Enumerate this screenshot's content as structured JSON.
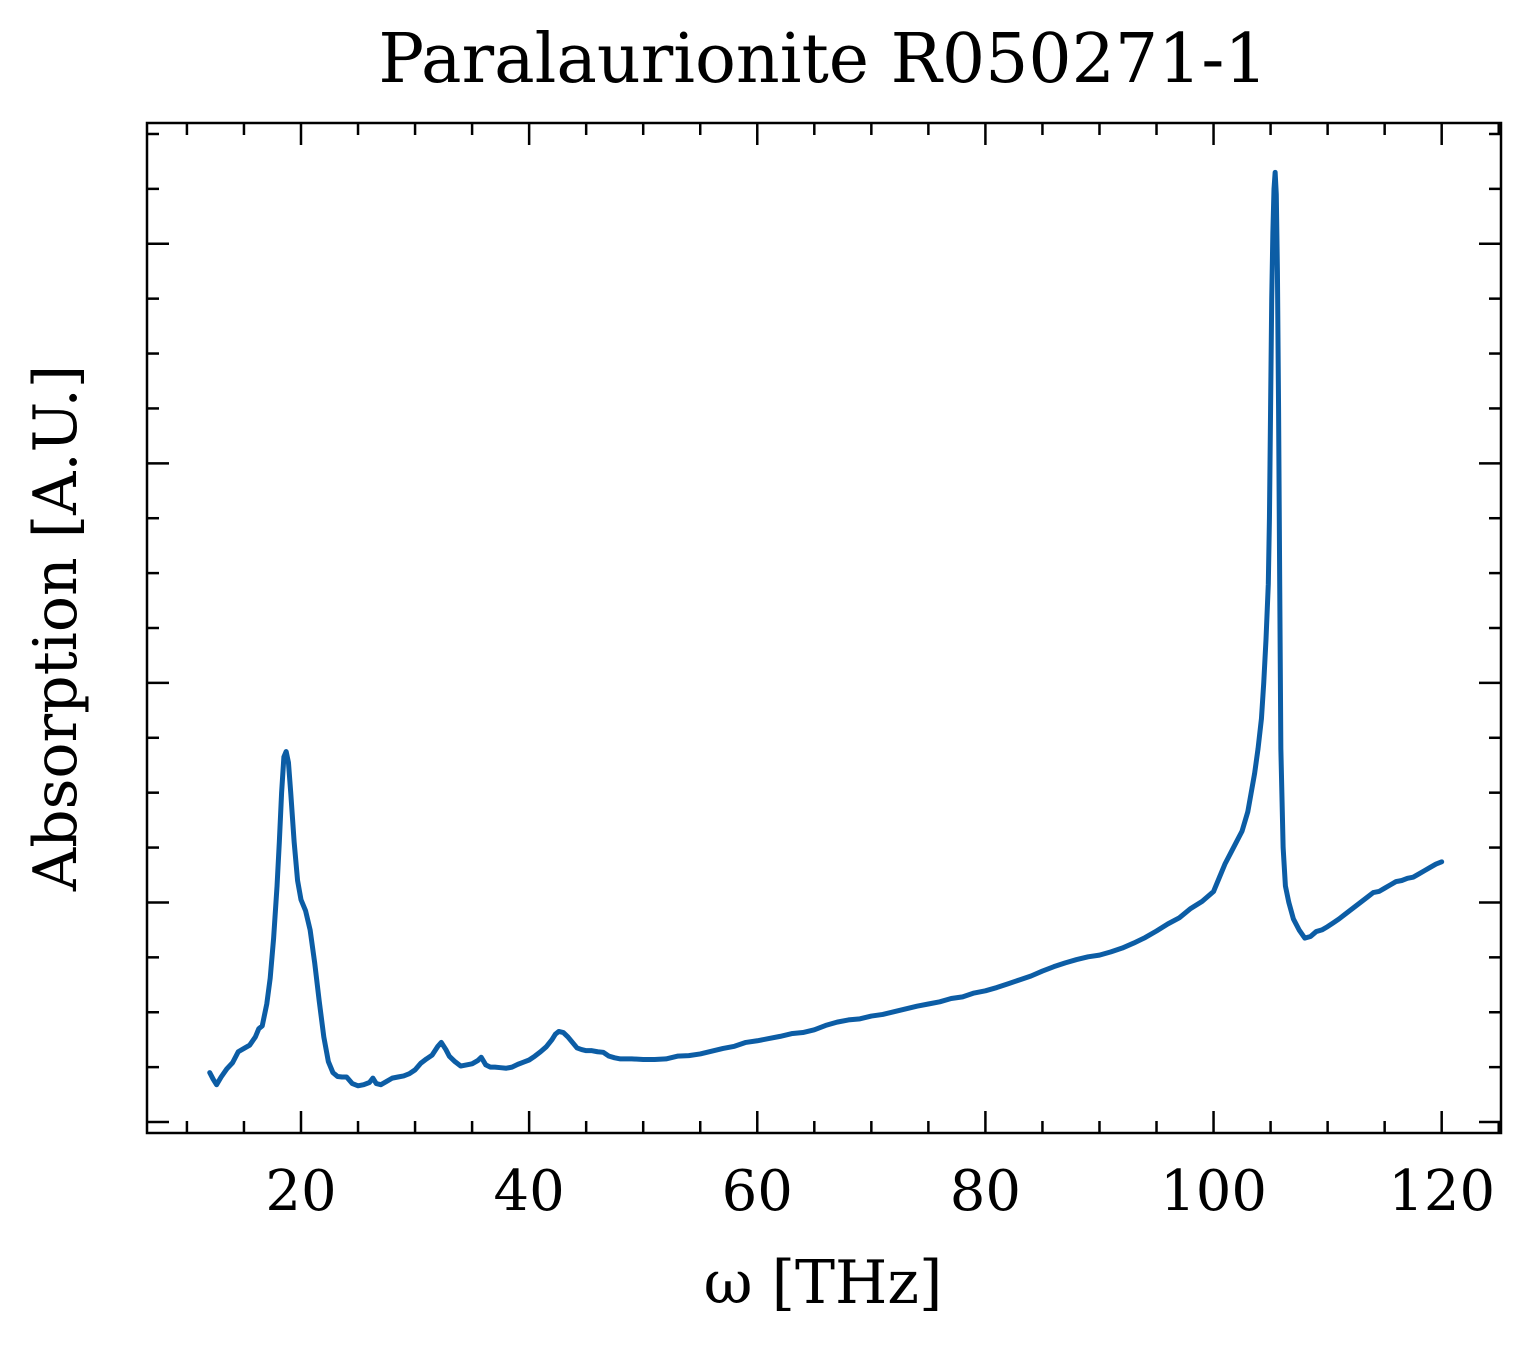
{
  "chart_data": {
    "type": "line",
    "title": "Paralaurionite R050271-1",
    "xlabel": "ω [THz]",
    "ylabel": "Absorption [A.U.]",
    "xlim": [
      6.5,
      125.2
    ],
    "ylim": [
      -0.02,
      1.82
    ],
    "x_ticks": [
      20,
      40,
      60,
      80,
      100,
      120
    ],
    "x_tick_labels": [
      "20",
      "40",
      "60",
      "80",
      "100",
      "120"
    ],
    "y_major_ticks": [
      0.0,
      0.4,
      0.8,
      1.2,
      1.6
    ],
    "y_tick_labels_visible": false,
    "grid": false,
    "line_color": "#0C5DA5",
    "series": [
      {
        "x": [
          12.0,
          12.3,
          12.6,
          13.0,
          13.5,
          14.0,
          14.5,
          15.0,
          15.5,
          16.0,
          16.3,
          16.6,
          17.0,
          17.3,
          17.6,
          17.9,
          18.1,
          18.3,
          18.5,
          18.7,
          18.9,
          19.1,
          19.4,
          19.7,
          20.0,
          20.4,
          20.8,
          21.2,
          21.6,
          22.0,
          22.4,
          22.8,
          23.2,
          23.6,
          24.0,
          24.5,
          25.0,
          25.5,
          26.0,
          26.3,
          26.6,
          27.0,
          27.5,
          28.0,
          28.5,
          29.0,
          29.5,
          30.0,
          30.5,
          31.0,
          31.5,
          32.0,
          32.3,
          32.7,
          33.0,
          33.5,
          34.0,
          34.5,
          35.0,
          35.5,
          35.8,
          36.2,
          36.6,
          37.0,
          37.5,
          38.0,
          38.5,
          39.0,
          39.5,
          40.0,
          40.5,
          41.0,
          41.5,
          42.0,
          42.3,
          42.6,
          43.0,
          43.4,
          43.8,
          44.2,
          44.6,
          45.0,
          45.5,
          46.0,
          46.5,
          47.0,
          47.5,
          48.0,
          49.0,
          50.0,
          51.0,
          52.0,
          53.0,
          54.0,
          55.0,
          56.0,
          57.0,
          58.0,
          59.0,
          60.0,
          61.0,
          62.0,
          63.0,
          64.0,
          65.0,
          66.0,
          67.0,
          68.0,
          69.0,
          70.0,
          71.0,
          72.0,
          73.0,
          74.0,
          75.0,
          76.0,
          77.0,
          78.0,
          79.0,
          80.0,
          81.0,
          82.0,
          83.0,
          84.0,
          85.0,
          86.0,
          87.0,
          88.0,
          89.0,
          90.0,
          91.0,
          92.0,
          93.0,
          94.0,
          95.0,
          96.0,
          97.0,
          98.0,
          99.0,
          100.0,
          100.5,
          101.0,
          101.5,
          102.0,
          102.5,
          103.0,
          103.3,
          103.6,
          103.9,
          104.2,
          104.4,
          104.6,
          104.8,
          104.9,
          105.0,
          105.1,
          105.2,
          105.3,
          105.4,
          105.5,
          105.6,
          105.7,
          105.8,
          105.9,
          106.1,
          106.3,
          106.6,
          107.0,
          107.5,
          108.0,
          108.5,
          109.0,
          109.5,
          110.0,
          110.5,
          111.0,
          111.5,
          112.0,
          112.5,
          113.0,
          113.5,
          114.0,
          114.5,
          115.0,
          115.5,
          116.0,
          116.5,
          117.0,
          117.5,
          118.0,
          118.5,
          119.0,
          119.5,
          120.0
        ],
        "y": [
          0.09,
          0.078,
          0.068,
          0.082,
          0.097,
          0.108,
          0.128,
          0.134,
          0.14,
          0.155,
          0.17,
          0.175,
          0.215,
          0.262,
          0.335,
          0.43,
          0.51,
          0.6,
          0.665,
          0.675,
          0.655,
          0.6,
          0.51,
          0.44,
          0.405,
          0.385,
          0.35,
          0.29,
          0.22,
          0.155,
          0.11,
          0.09,
          0.083,
          0.082,
          0.082,
          0.07,
          0.066,
          0.068,
          0.072,
          0.08,
          0.07,
          0.068,
          0.074,
          0.08,
          0.082,
          0.084,
          0.088,
          0.095,
          0.107,
          0.115,
          0.122,
          0.138,
          0.145,
          0.132,
          0.12,
          0.11,
          0.102,
          0.104,
          0.106,
          0.112,
          0.118,
          0.104,
          0.1,
          0.1,
          0.099,
          0.098,
          0.1,
          0.105,
          0.109,
          0.113,
          0.12,
          0.128,
          0.137,
          0.15,
          0.16,
          0.165,
          0.163,
          0.155,
          0.145,
          0.135,
          0.132,
          0.13,
          0.13,
          0.128,
          0.127,
          0.12,
          0.117,
          0.115,
          0.115,
          0.114,
          0.114,
          0.115,
          0.12,
          0.121,
          0.124,
          0.129,
          0.134,
          0.138,
          0.145,
          0.148,
          0.152,
          0.156,
          0.161,
          0.163,
          0.168,
          0.176,
          0.182,
          0.186,
          0.188,
          0.193,
          0.196,
          0.201,
          0.206,
          0.211,
          0.215,
          0.219,
          0.225,
          0.228,
          0.235,
          0.239,
          0.245,
          0.252,
          0.259,
          0.266,
          0.275,
          0.283,
          0.29,
          0.296,
          0.301,
          0.304,
          0.31,
          0.317,
          0.326,
          0.336,
          0.348,
          0.361,
          0.372,
          0.389,
          0.402,
          0.42,
          0.445,
          0.47,
          0.49,
          0.51,
          0.53,
          0.565,
          0.6,
          0.635,
          0.68,
          0.735,
          0.8,
          0.88,
          0.98,
          1.1,
          1.3,
          1.5,
          1.62,
          1.7,
          1.73,
          1.69,
          1.55,
          1.3,
          0.98,
          0.68,
          0.5,
          0.43,
          0.4,
          0.37,
          0.35,
          0.335,
          0.338,
          0.347,
          0.35,
          0.356,
          0.363,
          0.37,
          0.378,
          0.386,
          0.394,
          0.402,
          0.41,
          0.418,
          0.42,
          0.426,
          0.432,
          0.438,
          0.44,
          0.444,
          0.446,
          0.452,
          0.458,
          0.464,
          0.47,
          0.474
        ]
      }
    ]
  }
}
